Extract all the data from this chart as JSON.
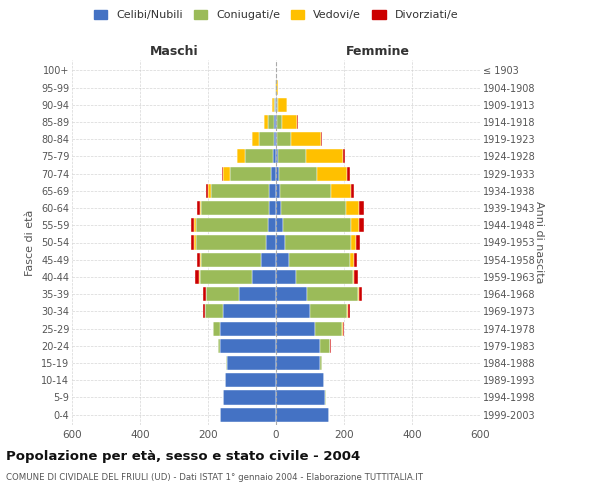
{
  "age_groups": [
    "0-4",
    "5-9",
    "10-14",
    "15-19",
    "20-24",
    "25-29",
    "30-34",
    "35-39",
    "40-44",
    "45-49",
    "50-54",
    "55-59",
    "60-64",
    "65-69",
    "70-74",
    "75-79",
    "80-84",
    "85-89",
    "90-94",
    "95-99",
    "100+"
  ],
  "birth_years": [
    "1999-2003",
    "1994-1998",
    "1989-1993",
    "1984-1988",
    "1979-1983",
    "1974-1978",
    "1969-1973",
    "1964-1968",
    "1959-1963",
    "1954-1958",
    "1949-1953",
    "1944-1948",
    "1939-1943",
    "1934-1938",
    "1929-1933",
    "1924-1928",
    "1919-1923",
    "1914-1918",
    "1909-1913",
    "1904-1908",
    "≤ 1903"
  ],
  "male": {
    "celibi": [
      165,
      155,
      150,
      145,
      165,
      165,
      155,
      110,
      70,
      45,
      30,
      25,
      20,
      20,
      15,
      10,
      5,
      5,
      2,
      1,
      0
    ],
    "coniugati": [
      0,
      0,
      0,
      1,
      5,
      20,
      55,
      95,
      155,
      175,
      205,
      210,
      200,
      170,
      120,
      80,
      45,
      20,
      5,
      1,
      0
    ],
    "vedovi": [
      0,
      0,
      0,
      0,
      0,
      0,
      0,
      2,
      2,
      3,
      5,
      5,
      5,
      10,
      20,
      25,
      20,
      10,
      5,
      1,
      0
    ],
    "divorziati": [
      0,
      0,
      0,
      0,
      1,
      1,
      5,
      8,
      12,
      8,
      10,
      10,
      8,
      5,
      3,
      0,
      0,
      0,
      0,
      0,
      0
    ]
  },
  "female": {
    "nubili": [
      155,
      145,
      140,
      130,
      130,
      115,
      100,
      90,
      60,
      38,
      25,
      20,
      15,
      12,
      10,
      7,
      3,
      3,
      2,
      0,
      0
    ],
    "coniugate": [
      0,
      1,
      2,
      5,
      30,
      80,
      110,
      150,
      165,
      180,
      195,
      200,
      190,
      150,
      110,
      80,
      40,
      15,
      5,
      1,
      0
    ],
    "vedove": [
      0,
      0,
      0,
      0,
      0,
      1,
      2,
      3,
      5,
      10,
      15,
      25,
      40,
      60,
      90,
      110,
      90,
      45,
      25,
      5,
      1
    ],
    "divorziate": [
      0,
      0,
      0,
      0,
      1,
      3,
      5,
      10,
      10,
      10,
      12,
      15,
      15,
      8,
      8,
      5,
      3,
      2,
      0,
      0,
      0
    ]
  },
  "colors": {
    "celibi": "#4472C4",
    "coniugati": "#9BBB59",
    "vedovi": "#FFC000",
    "divorziati": "#CC0000"
  },
  "xlim": 600,
  "title": "Popolazione per età, sesso e stato civile - 2004",
  "subtitle": "COMUNE DI CIVIDALE DEL FRIULI (UD) - Dati ISTAT 1° gennaio 2004 - Elaborazione TUTTITALIA.IT",
  "ylabel_left": "Fasce di età",
  "ylabel_right": "Anni di nascita",
  "xlabel_male": "Maschi",
  "xlabel_female": "Femmine",
  "bg_color": "#FFFFFF",
  "grid_color": "#CCCCCC"
}
